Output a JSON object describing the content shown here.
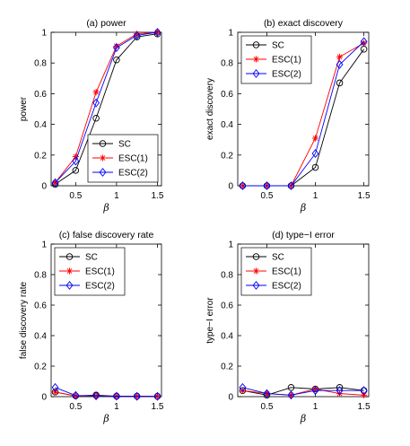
{
  "chart_data": [
    {
      "type": "line",
      "title": "(a) power",
      "xlabel": "β",
      "ylabel": "power",
      "xlim": [
        0.2,
        1.55
      ],
      "ylim": [
        0,
        1
      ],
      "xticks": [
        "0.5",
        "1",
        "1.5"
      ],
      "yticks": [
        "0",
        "0.2",
        "0.4",
        "0.6",
        "0.8",
        "1"
      ],
      "legend_position": "bottom-right",
      "x": [
        0.25,
        0.5,
        0.75,
        1.0,
        1.25,
        1.5
      ],
      "series": [
        {
          "name": "SC",
          "color": "#000000",
          "marker": "circle",
          "values": [
            0.01,
            0.1,
            0.44,
            0.82,
            0.97,
            0.99
          ]
        },
        {
          "name": "ESC(1)",
          "color": "#ff0000",
          "marker": "asterisk",
          "values": [
            0.02,
            0.19,
            0.61,
            0.91,
            0.99,
            1.0
          ]
        },
        {
          "name": "ESC(2)",
          "color": "#0000ff",
          "marker": "diamond",
          "values": [
            0.02,
            0.16,
            0.54,
            0.9,
            0.98,
            1.0
          ]
        }
      ]
    },
    {
      "type": "line",
      "title": "(b) exact discovery",
      "xlabel": "β",
      "ylabel": "exact discovery",
      "xlim": [
        0.2,
        1.55
      ],
      "ylim": [
        0,
        1
      ],
      "xticks": [
        "0.5",
        "1",
        "1.5"
      ],
      "yticks": [
        "0",
        "0.2",
        "0.4",
        "0.6",
        "0.8",
        "1"
      ],
      "legend_position": "top-left",
      "x": [
        0.25,
        0.5,
        0.75,
        1.0,
        1.25,
        1.5
      ],
      "series": [
        {
          "name": "SC",
          "color": "#000000",
          "marker": "circle",
          "values": [
            0.0,
            0.0,
            0.0,
            0.12,
            0.67,
            0.89
          ]
        },
        {
          "name": "ESC(1)",
          "color": "#ff0000",
          "marker": "asterisk",
          "values": [
            0.0,
            0.0,
            0.0,
            0.31,
            0.84,
            0.93
          ]
        },
        {
          "name": "ESC(2)",
          "color": "#0000ff",
          "marker": "diamond",
          "values": [
            0.0,
            0.0,
            0.0,
            0.21,
            0.79,
            0.94
          ]
        }
      ]
    },
    {
      "type": "line",
      "title": "(c) false discovery rate",
      "xlabel": "β",
      "ylabel": "false discovery rate",
      "xlim": [
        0.2,
        1.55
      ],
      "ylim": [
        0,
        1
      ],
      "xticks": [
        "0.5",
        "1",
        "1.5"
      ],
      "yticks": [
        "0",
        "0.2",
        "0.4",
        "0.6",
        "0.8",
        "1"
      ],
      "legend_position": "top-left",
      "x": [
        0.25,
        0.5,
        0.75,
        1.0,
        1.25,
        1.5
      ],
      "series": [
        {
          "name": "SC",
          "color": "#000000",
          "marker": "circle",
          "values": [
            0.03,
            0.005,
            0.01,
            0.003,
            0.003,
            0.002
          ]
        },
        {
          "name": "ESC(1)",
          "color": "#ff0000",
          "marker": "asterisk",
          "values": [
            0.03,
            0.005,
            0.005,
            0.003,
            0.002,
            0.002
          ]
        },
        {
          "name": "ESC(2)",
          "color": "#0000ff",
          "marker": "diamond",
          "values": [
            0.06,
            0.008,
            0.005,
            0.003,
            0.002,
            0.002
          ]
        }
      ]
    },
    {
      "type": "line",
      "title": "(d) type−I error",
      "xlabel": "β",
      "ylabel": "type−I error",
      "xlim": [
        0.2,
        1.55
      ],
      "ylim": [
        0,
        1
      ],
      "xticks": [
        "0.5",
        "1",
        "1.5"
      ],
      "yticks": [
        "0",
        "0.2",
        "0.4",
        "0.6",
        "0.8",
        "1"
      ],
      "legend_position": "top-left",
      "x": [
        0.25,
        0.5,
        0.75,
        1.0,
        1.25,
        1.5
      ],
      "series": [
        {
          "name": "SC",
          "color": "#000000",
          "marker": "circle",
          "values": [
            0.04,
            0.01,
            0.06,
            0.05,
            0.06,
            0.04
          ]
        },
        {
          "name": "ESC(1)",
          "color": "#ff0000",
          "marker": "asterisk",
          "values": [
            0.04,
            0.02,
            0.01,
            0.05,
            0.02,
            0.01
          ]
        },
        {
          "name": "ESC(2)",
          "color": "#0000ff",
          "marker": "diamond",
          "values": [
            0.06,
            0.02,
            0.01,
            0.04,
            0.04,
            0.04
          ]
        }
      ]
    }
  ]
}
